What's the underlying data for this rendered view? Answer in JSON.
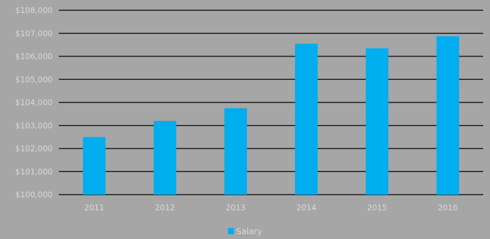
{
  "chart_data": {
    "type": "bar",
    "title": "",
    "xlabel": "",
    "ylabel": "",
    "categories": [
      "2011",
      "2012",
      "2013",
      "2014",
      "2015",
      "2016"
    ],
    "series": [
      {
        "name": "Salary",
        "values": [
          102500,
          103200,
          103750,
          106550,
          106350,
          106870
        ]
      }
    ],
    "ylim": [
      100000,
      108000
    ],
    "yticks": [
      100000,
      101000,
      102000,
      103000,
      104000,
      105000,
      106000,
      107000,
      108000
    ],
    "ytick_labels": [
      "$100,000",
      "$101,000",
      "$102,000",
      "$103,000",
      "$104,000",
      "$105,000",
      "$106,000",
      "$107,000",
      "$108,000"
    ],
    "grid": true,
    "legend_position": "bottom-center",
    "colors": {
      "background": "#a6a6a6",
      "bar": "#00adef",
      "gridline": "#1a1a1a",
      "tick_text": "#d9d9d9"
    }
  }
}
